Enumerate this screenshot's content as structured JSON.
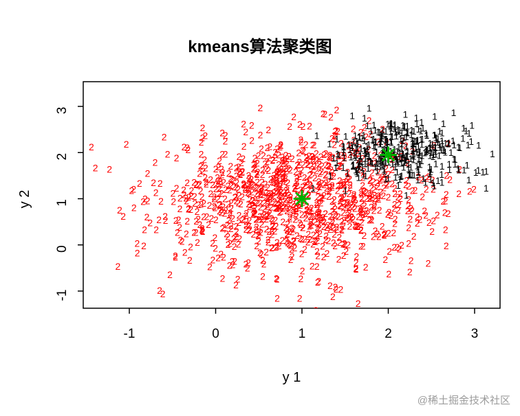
{
  "page": {
    "title": "kmeans算法聚类图",
    "watermark": "@稀土掘金技术社区"
  },
  "chart_data": {
    "type": "scatter",
    "title": "kmeans算法聚类图",
    "xlabel": "y 1",
    "ylabel": "y 2",
    "xlim": [
      -1.55,
      3.45
    ],
    "ylim": [
      -1.35,
      3.35
    ],
    "xticks": [
      "-1",
      "0",
      "1",
      "2",
      "3"
    ],
    "yticks": [
      "-1",
      "0",
      "1",
      "2",
      "3"
    ],
    "xtick_values": [
      -1,
      0,
      1,
      2,
      3
    ],
    "ytick_values": [
      -1,
      0,
      1,
      2,
      3
    ],
    "grid": false,
    "legend": "none",
    "point_glyph_style": "points drawn as cluster-label characters",
    "clusters": [
      {
        "label": "2",
        "color": "#FF0000",
        "n": 1000,
        "center": [
          0.95,
          1.0
        ],
        "sd": [
          0.8,
          0.72
        ],
        "seed": 1234
      },
      {
        "label": "1",
        "color": "#000000",
        "n": 350,
        "center": [
          2.12,
          2.02
        ],
        "sd": [
          0.42,
          0.36
        ],
        "seed": 99
      }
    ],
    "centroids": {
      "marker": "asterisk-pch8",
      "color": "#00B200",
      "points": [
        [
          1.0,
          1.0
        ],
        [
          2.0,
          1.95
        ]
      ]
    }
  }
}
